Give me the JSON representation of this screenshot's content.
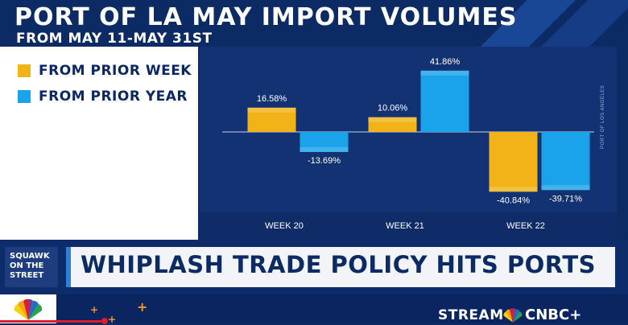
{
  "header": {
    "title": "PORT OF LA MAY IMPORT VOLUMES",
    "subtitle": "FROM MAY 11-MAY 31ST"
  },
  "legend": {
    "items": [
      {
        "label": "FROM PRIOR WEEK",
        "color": "#f1b318"
      },
      {
        "label": "FROM PRIOR YEAR",
        "color": "#1aa3e8"
      }
    ]
  },
  "source_text": "PORT OF LOS ANGELES",
  "chart_data": {
    "type": "bar",
    "categories": [
      "WEEK 20",
      "WEEK 21",
      "WEEK 22"
    ],
    "series": [
      {
        "name": "FROM PRIOR WEEK",
        "values": [
          16.58,
          10.06,
          -40.84
        ],
        "labels": [
          "16.58%",
          "10.06%",
          "-40.84%"
        ],
        "color": "#f1b318"
      },
      {
        "name": "FROM PRIOR YEAR",
        "values": [
          -13.69,
          41.86,
          -39.71
        ],
        "labels": [
          "-13.69%",
          "41.86%",
          "-39.71%"
        ],
        "color": "#1aa3e8"
      }
    ],
    "ylim": [
      -45,
      45
    ],
    "grid": false,
    "legend_position": "left"
  },
  "lower_third": {
    "show_name": [
      "SQUAWK",
      "ON THE",
      "STREET"
    ],
    "headline": "WHIPLASH TRADE POLICY HITS PORTS"
  },
  "ticker": {
    "stream_label": "STREAM",
    "network_label": "CNBC+"
  },
  "icons": {
    "network_logo": "peacock-icon",
    "decorations": "plus-icon"
  }
}
